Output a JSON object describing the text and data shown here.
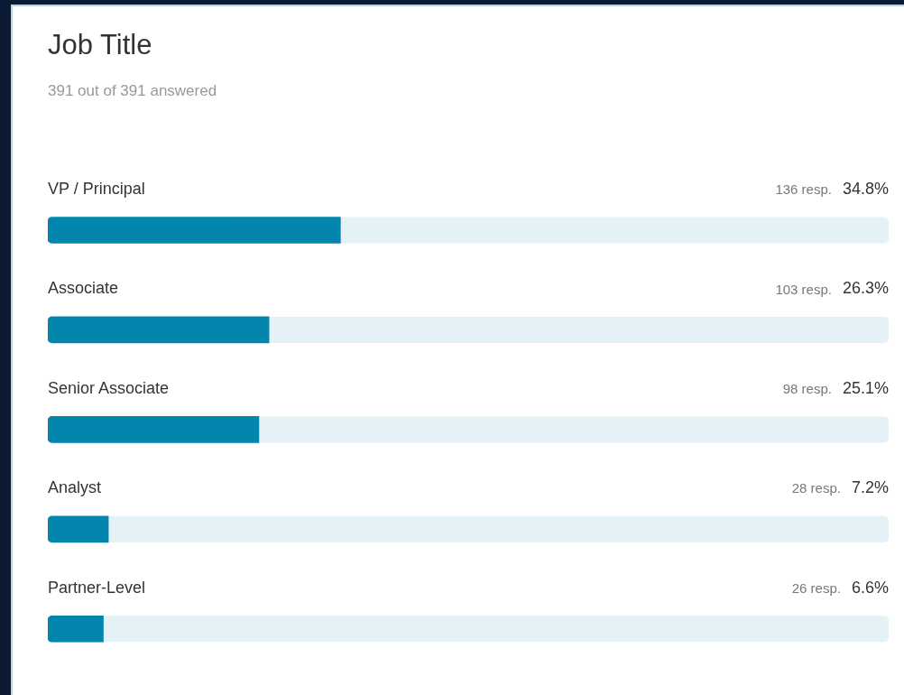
{
  "chart_data": {
    "type": "bar",
    "orientation": "horizontal",
    "title": "Job Title",
    "subtitle": "391 out of 391 answered",
    "categories": [
      "VP / Principal",
      "Associate",
      "Senior Associate",
      "Analyst",
      "Partner-Level"
    ],
    "values": [
      34.8,
      26.3,
      25.1,
      7.2,
      6.6
    ],
    "value_labels": [
      "34.8%",
      "26.3%",
      "25.1%",
      "7.2%",
      "6.6%"
    ],
    "annotations": [
      "136 resp.",
      "103 resp.",
      "98 resp.",
      "28 resp.",
      "26 resp."
    ],
    "color": "#0386ae",
    "xlim": [
      0,
      100
    ],
    "tick_labels": false
  }
}
